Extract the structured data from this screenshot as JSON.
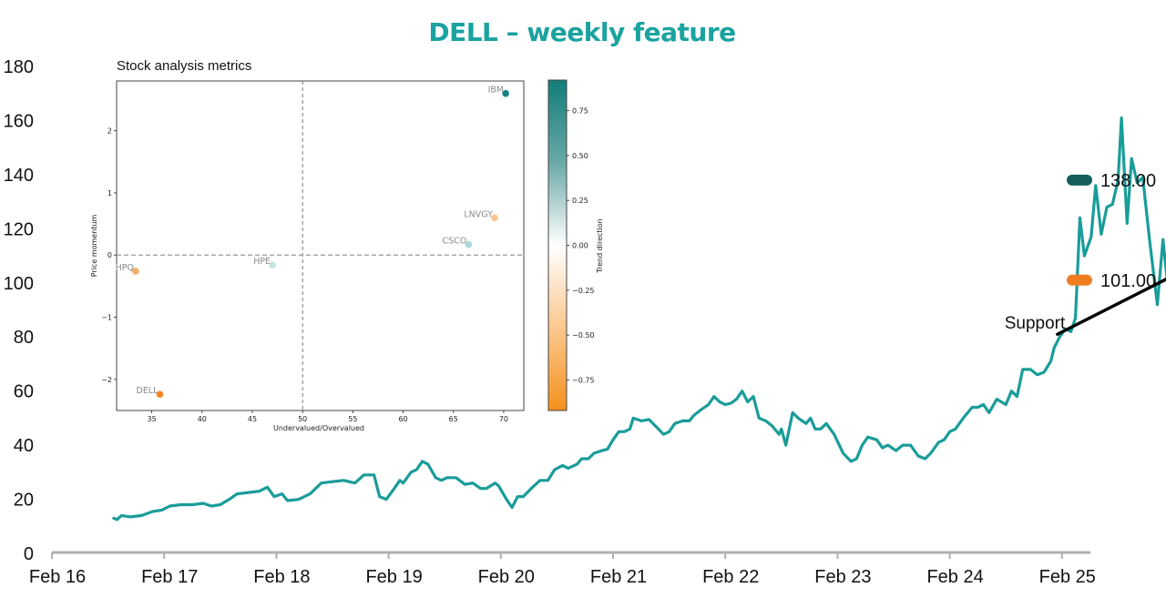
{
  "chart_data": [
    {
      "type": "line",
      "title": "DELL – weekly feature",
      "xlabel": "",
      "ylabel": "",
      "ylim": [
        0,
        180
      ],
      "yticks": [
        "0",
        "20",
        "40",
        "60",
        "80",
        "100",
        "120",
        "140",
        "160",
        "180"
      ],
      "xticks": [
        "Feb 16",
        "Feb 17",
        "Feb 18",
        "Feb 19",
        "Feb 20",
        "Feb 21",
        "Feb 22",
        "Feb 23",
        "Feb 24",
        "Feb 25"
      ],
      "xlim_years": [
        2016,
        2025.25
      ],
      "grid": false,
      "series": [
        {
          "name": "DELL",
          "color": "#1a9c99",
          "points": [
            [
              2016.55,
              13
            ],
            [
              2016.58,
              12.5
            ],
            [
              2016.62,
              14
            ],
            [
              2016.7,
              13.5
            ],
            [
              2016.8,
              14
            ],
            [
              2016.9,
              15.5
            ],
            [
              2016.98,
              16
            ],
            [
              2017.05,
              17.5
            ],
            [
              2017.15,
              18
            ],
            [
              2017.25,
              18
            ],
            [
              2017.35,
              18.5
            ],
            [
              2017.42,
              17.5
            ],
            [
              2017.5,
              18
            ],
            [
              2017.58,
              20
            ],
            [
              2017.65,
              22
            ],
            [
              2017.75,
              22.5
            ],
            [
              2017.85,
              23
            ],
            [
              2017.92,
              24.5
            ],
            [
              2017.98,
              21
            ],
            [
              2018.05,
              22
            ],
            [
              2018.1,
              19.5
            ],
            [
              2018.2,
              20
            ],
            [
              2018.3,
              22
            ],
            [
              2018.4,
              26
            ],
            [
              2018.5,
              26.5
            ],
            [
              2018.6,
              27
            ],
            [
              2018.7,
              26
            ],
            [
              2018.78,
              29
            ],
            [
              2018.87,
              29
            ],
            [
              2018.92,
              21
            ],
            [
              2018.98,
              20
            ],
            [
              2019.05,
              24
            ],
            [
              2019.1,
              27
            ],
            [
              2019.13,
              26
            ],
            [
              2019.2,
              30
            ],
            [
              2019.25,
              31
            ],
            [
              2019.3,
              34
            ],
            [
              2019.35,
              33
            ],
            [
              2019.42,
              28
            ],
            [
              2019.47,
              27
            ],
            [
              2019.52,
              28
            ],
            [
              2019.6,
              28
            ],
            [
              2019.68,
              25.5
            ],
            [
              2019.75,
              26
            ],
            [
              2019.82,
              24
            ],
            [
              2019.87,
              24
            ],
            [
              2019.95,
              26
            ],
            [
              2019.98,
              25
            ],
            [
              2020.05,
              20
            ],
            [
              2020.1,
              17
            ],
            [
              2020.15,
              21
            ],
            [
              2020.2,
              21
            ],
            [
              2020.27,
              24
            ],
            [
              2020.35,
              27
            ],
            [
              2020.42,
              27
            ],
            [
              2020.48,
              31
            ],
            [
              2020.55,
              32.5
            ],
            [
              2020.6,
              31.5
            ],
            [
              2020.68,
              33
            ],
            [
              2020.72,
              35
            ],
            [
              2020.78,
              35
            ],
            [
              2020.83,
              37
            ],
            [
              2020.9,
              38
            ],
            [
              2020.95,
              38.5
            ],
            [
              2021.0,
              42
            ],
            [
              2021.05,
              45
            ],
            [
              2021.1,
              45
            ],
            [
              2021.15,
              46
            ],
            [
              2021.18,
              50
            ],
            [
              2021.25,
              49
            ],
            [
              2021.32,
              49.5
            ],
            [
              2021.38,
              47
            ],
            [
              2021.45,
              44
            ],
            [
              2021.5,
              45
            ],
            [
              2021.55,
              48
            ],
            [
              2021.62,
              49
            ],
            [
              2021.68,
              49
            ],
            [
              2021.72,
              51
            ],
            [
              2021.78,
              53
            ],
            [
              2021.85,
              55
            ],
            [
              2021.9,
              58
            ],
            [
              2021.95,
              56
            ],
            [
              2022.0,
              55
            ],
            [
              2022.05,
              55.5
            ],
            [
              2022.1,
              57
            ],
            [
              2022.15,
              60
            ],
            [
              2022.2,
              56
            ],
            [
              2022.25,
              58
            ],
            [
              2022.3,
              50
            ],
            [
              2022.36,
              49
            ],
            [
              2022.42,
              47
            ],
            [
              2022.48,
              44
            ],
            [
              2022.5,
              46
            ],
            [
              2022.54,
              40
            ],
            [
              2022.6,
              52
            ],
            [
              2022.65,
              50
            ],
            [
              2022.72,
              48
            ],
            [
              2022.76,
              50
            ],
            [
              2022.8,
              46
            ],
            [
              2022.85,
              46
            ],
            [
              2022.9,
              48
            ],
            [
              2022.97,
              44
            ],
            [
              2023.05,
              37
            ],
            [
              2023.12,
              34
            ],
            [
              2023.17,
              35
            ],
            [
              2023.22,
              40
            ],
            [
              2023.27,
              43
            ],
            [
              2023.35,
              42
            ],
            [
              2023.4,
              39
            ],
            [
              2023.45,
              40
            ],
            [
              2023.52,
              38
            ],
            [
              2023.58,
              40
            ],
            [
              2023.65,
              40
            ],
            [
              2023.72,
              36
            ],
            [
              2023.78,
              35
            ],
            [
              2023.83,
              37
            ],
            [
              2023.9,
              41
            ],
            [
              2023.95,
              42
            ],
            [
              2024.0,
              45
            ],
            [
              2024.05,
              46
            ],
            [
              2024.12,
              50
            ],
            [
              2024.2,
              54
            ],
            [
              2024.25,
              54
            ],
            [
              2024.3,
              55
            ],
            [
              2024.35,
              52
            ],
            [
              2024.42,
              57
            ],
            [
              2024.5,
              55
            ],
            [
              2024.55,
              60
            ],
            [
              2024.6,
              58
            ],
            [
              2024.65,
              68
            ],
            [
              2024.72,
              68
            ],
            [
              2024.78,
              66
            ],
            [
              2024.84,
              67
            ],
            [
              2024.9,
              71
            ],
            [
              2024.93,
              76
            ],
            [
              2024.98,
              80
            ],
            [
              2025.03,
              83
            ],
            [
              2025.08,
              82
            ],
            [
              2025.12,
              87
            ],
            [
              2025.16,
              124
            ],
            [
              2025.2,
              110
            ],
            [
              2025.26,
              117
            ],
            [
              2025.3,
              136
            ],
            [
              2025.35,
              118
            ],
            [
              2025.4,
              128
            ],
            [
              2025.45,
              129
            ],
            [
              2025.5,
              138
            ],
            [
              2025.53,
              161
            ],
            [
              2025.58,
              122
            ],
            [
              2025.62,
              146
            ],
            [
              2025.67,
              137
            ],
            [
              2025.72,
              139
            ],
            [
              2025.78,
              116
            ],
            [
              2025.85,
              92
            ],
            [
              2025.9,
              116
            ],
            [
              2025.94,
              100
            ],
            [
              2025.98,
              119
            ],
            [
              2026.02,
              122
            ],
            [
              2026.08,
              126
            ],
            [
              2026.12,
              133
            ],
            [
              2026.16,
              136
            ],
            [
              2026.2,
              145
            ],
            [
              2026.26,
              118
            ],
            [
              2026.3,
              114
            ],
            [
              2026.36,
              110
            ],
            [
              2026.4,
              106
            ],
            [
              2026.45,
              103
            ],
            [
              2026.5,
              111
            ]
          ]
        }
      ],
      "annotations": {
        "support_label": "Support",
        "support_line": [
          [
            2024.96,
            81
          ],
          [
            2026.15,
            106
          ]
        ],
        "end_labels": [
          {
            "value": "138.00",
            "level": 138,
            "color": "#145e5c"
          },
          {
            "value": "101.00",
            "level": 101,
            "color": "#f07d1f"
          }
        ]
      }
    },
    {
      "type": "scatter",
      "title": "Stock analysis metrics",
      "xlabel": "Undervalued/Overvalued",
      "ylabel": "Price momentum",
      "colorbar_label": "Trend direction",
      "xlim": [
        31.5,
        72
      ],
      "ylim": [
        -2.5,
        2.8
      ],
      "xticks": [
        "35",
        "40",
        "45",
        "50",
        "55",
        "60",
        "65",
        "70"
      ],
      "yticks": [
        "−2",
        "−1",
        "0",
        "1",
        "2"
      ],
      "colorbar_ticks": [
        "0.75",
        "0.50",
        "0.25",
        "0.00",
        "−0.25",
        "−0.50",
        "−0.75"
      ],
      "colorbar_range": [
        -0.92,
        0.92
      ],
      "reference_lines": {
        "x": 50,
        "y": 0
      },
      "points": [
        {
          "label": "IBM",
          "x": 70.2,
          "y": 2.6,
          "trend": 0.9,
          "color": "#138583"
        },
        {
          "label": "LNVGY",
          "x": 69.1,
          "y": 0.6,
          "trend": -0.35,
          "color": "#fbc58d"
        },
        {
          "label": "CSCO",
          "x": 66.5,
          "y": 0.17,
          "trend": 0.35,
          "color": "#a9d9d8"
        },
        {
          "label": "HPE",
          "x": 47.0,
          "y": -0.16,
          "trend": 0.2,
          "color": "#c8e4e3"
        },
        {
          "label": "HPQ",
          "x": 33.4,
          "y": -0.26,
          "trend": -0.55,
          "color": "#f9ad63"
        },
        {
          "label": "DELL",
          "x": 35.8,
          "y": -2.24,
          "trend": -0.9,
          "color": "#f5851f"
        }
      ]
    }
  ]
}
